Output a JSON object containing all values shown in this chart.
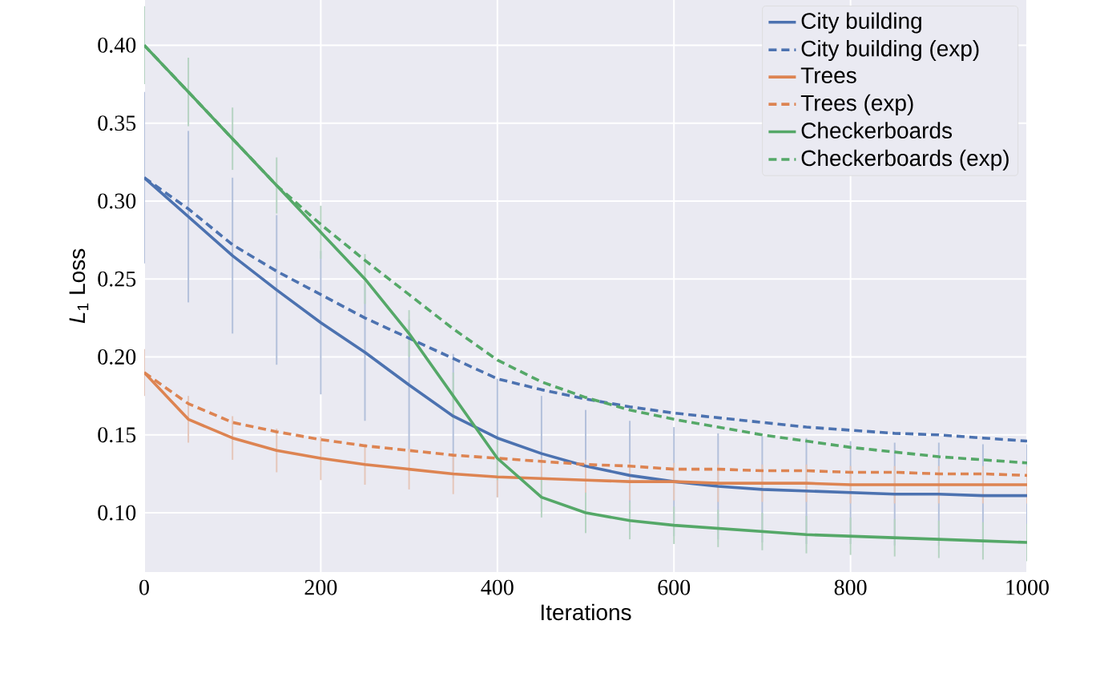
{
  "chart_data": {
    "type": "line",
    "xlabel": "Iterations",
    "ylabel": "*L*$_{1}$ Loss",
    "x": [
      0,
      50,
      100,
      150,
      200,
      250,
      300,
      350,
      400,
      450,
      500,
      550,
      600,
      650,
      700,
      750,
      800,
      850,
      900,
      950,
      1000
    ],
    "series": [
      {
        "name": "City building",
        "color": "#4c72b0",
        "line_style": "solid",
        "values": [
          0.315,
          0.29,
          0.265,
          0.243,
          0.222,
          0.203,
          0.182,
          0.162,
          0.148,
          0.138,
          0.13,
          0.124,
          0.12,
          0.117,
          0.115,
          0.114,
          0.113,
          0.112,
          0.112,
          0.111,
          0.111
        ],
        "errors": [
          0.055,
          0.055,
          0.05,
          0.048,
          0.046,
          0.044,
          0.042,
          0.04,
          0.038,
          0.037,
          0.036,
          0.035,
          0.035,
          0.034,
          0.034,
          0.034,
          0.033,
          0.033,
          0.033,
          0.033,
          0.033
        ]
      },
      {
        "name": "City building (exp)",
        "color": "#4c72b0",
        "line_style": "dashed",
        "values": [
          0.315,
          0.295,
          0.272,
          0.255,
          0.24,
          0.225,
          0.212,
          0.199,
          0.186,
          0.179,
          0.173,
          0.168,
          0.164,
          0.161,
          0.158,
          0.155,
          0.153,
          0.151,
          0.15,
          0.148,
          0.146
        ]
      },
      {
        "name": "Trees",
        "color": "#dd8452",
        "line_style": "solid",
        "values": [
          0.19,
          0.16,
          0.148,
          0.14,
          0.135,
          0.131,
          0.128,
          0.125,
          0.123,
          0.122,
          0.121,
          0.12,
          0.12,
          0.119,
          0.119,
          0.119,
          0.118,
          0.118,
          0.118,
          0.118,
          0.118
        ],
        "errors": [
          0.015,
          0.015,
          0.014,
          0.014,
          0.014,
          0.013,
          0.013,
          0.013,
          0.013,
          0.013,
          0.013,
          0.012,
          0.012,
          0.012,
          0.012,
          0.012,
          0.012,
          0.012,
          0.012,
          0.012,
          0.012
        ]
      },
      {
        "name": "Trees (exp)",
        "color": "#dd8452",
        "line_style": "dashed",
        "values": [
          0.19,
          0.17,
          0.158,
          0.152,
          0.147,
          0.143,
          0.14,
          0.137,
          0.135,
          0.133,
          0.131,
          0.13,
          0.128,
          0.128,
          0.127,
          0.127,
          0.126,
          0.126,
          0.125,
          0.125,
          0.124
        ]
      },
      {
        "name": "Checkerboards",
        "color": "#55a868",
        "line_style": "solid",
        "values": [
          0.4,
          0.37,
          0.34,
          0.31,
          0.28,
          0.25,
          0.215,
          0.175,
          0.135,
          0.11,
          0.1,
          0.095,
          0.092,
          0.09,
          0.088,
          0.086,
          0.085,
          0.084,
          0.083,
          0.082,
          0.081
        ],
        "errors": [
          0.025,
          0.022,
          0.02,
          0.018,
          0.017,
          0.016,
          0.015,
          0.015,
          0.014,
          0.013,
          0.013,
          0.012,
          0.012,
          0.012,
          0.012,
          0.012,
          0.012,
          0.012,
          0.012,
          0.012,
          0.012
        ]
      },
      {
        "name": "Checkerboards (exp)",
        "color": "#55a868",
        "line_style": "dashed",
        "values": [
          0.4,
          0.37,
          0.34,
          0.31,
          0.285,
          0.262,
          0.24,
          0.218,
          0.198,
          0.184,
          0.174,
          0.166,
          0.16,
          0.155,
          0.15,
          0.146,
          0.142,
          0.139,
          0.136,
          0.134,
          0.132
        ]
      }
    ],
    "xlim": [
      0,
      1000
    ],
    "ylim": [
      0.062,
      0.429
    ],
    "xticks": [
      0,
      200,
      400,
      600,
      800,
      1000
    ],
    "yticks": [
      {
        "value": 0.1,
        "label": "0.10"
      },
      {
        "value": 0.15,
        "label": "0.15"
      },
      {
        "value": 0.2,
        "label": "0.20"
      },
      {
        "value": 0.25,
        "label": "0.25"
      },
      {
        "value": 0.3,
        "label": "0.30"
      },
      {
        "value": 0.35,
        "label": "0.35"
      },
      {
        "value": 0.4,
        "label": "0.40"
      }
    ],
    "grid": true,
    "legend": "top right"
  }
}
